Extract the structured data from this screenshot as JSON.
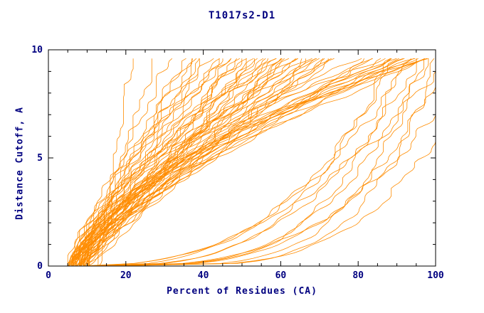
{
  "chart_data": {
    "type": "line",
    "title": "T1017s2-D1",
    "xlabel": "Percent of Residues (CA)",
    "ylabel": "Distance Cutoff, A",
    "xlim": [
      0,
      100
    ],
    "ylim": [
      0,
      10
    ],
    "x_major_ticks": [
      0,
      20,
      40,
      60,
      80,
      100
    ],
    "x_minor_step": 5,
    "y_major_ticks": [
      0,
      5,
      10
    ],
    "y_minor_step": 1,
    "grid": false,
    "legend": "none",
    "line_color": "#FF8C00",
    "axis_color": "#000000",
    "text_color": "#000080",
    "curve_model": "x(y) = x0 + (x1-x0)*(y/ymax)^p, monotone stair-stepped",
    "curves": [
      [
        13,
        21,
        1.15
      ],
      [
        12,
        27,
        1.1
      ],
      [
        6,
        32,
        1.1
      ],
      [
        7,
        35,
        1.0
      ],
      [
        5,
        38,
        1.2
      ],
      [
        8,
        40,
        0.95
      ],
      [
        6,
        42,
        1.15
      ],
      [
        9,
        44,
        1.05
      ],
      [
        7,
        46,
        1.2
      ],
      [
        5,
        48,
        1.0
      ],
      [
        8,
        50,
        1.1
      ],
      [
        10,
        52,
        0.9
      ],
      [
        6,
        54,
        1.25
      ],
      [
        7,
        56,
        1.05
      ],
      [
        9,
        58,
        1.15
      ],
      [
        5,
        60,
        1.0
      ],
      [
        8,
        62,
        1.2
      ],
      [
        6,
        64,
        1.1
      ],
      [
        10,
        66,
        0.95
      ],
      [
        7,
        68,
        1.15
      ],
      [
        9,
        70,
        1.05
      ],
      [
        6,
        72,
        1.25
      ],
      [
        8,
        74,
        1.1
      ],
      [
        5,
        45,
        1.3
      ],
      [
        7,
        52,
        1.35
      ],
      [
        9,
        48,
        0.85
      ],
      [
        6,
        57,
        1.3
      ],
      [
        8,
        66,
        1.35
      ],
      [
        10,
        60,
        1.2
      ],
      [
        5,
        36,
        0.9
      ],
      [
        7,
        41,
        1.25
      ],
      [
        9,
        55,
        1.3
      ],
      [
        6,
        49,
        0.95
      ],
      [
        8,
        59,
        1.25
      ],
      [
        10,
        71,
        1.3
      ],
      [
        5,
        63,
        1.15
      ],
      [
        7,
        67,
        1.4
      ],
      [
        9,
        73,
        1.2
      ],
      [
        6,
        39,
        1.05
      ],
      [
        8,
        47,
        1.3
      ],
      [
        10,
        53,
        1.0
      ],
      [
        5,
        58,
        1.35
      ],
      [
        7,
        62,
        0.9
      ],
      [
        9,
        65,
        1.25
      ],
      [
        6,
        69,
        1.35
      ],
      [
        8,
        72,
        1.05
      ],
      [
        10,
        75,
        1.4
      ],
      [
        6,
        80,
        1.4
      ],
      [
        8,
        83,
        1.5
      ],
      [
        7,
        86,
        1.3
      ],
      [
        9,
        88,
        1.6
      ],
      [
        5,
        90,
        1.45
      ],
      [
        8,
        92,
        1.7
      ],
      [
        6,
        94,
        1.5
      ],
      [
        10,
        96,
        1.8
      ],
      [
        7,
        98,
        1.6
      ],
      [
        9,
        100,
        1.9
      ],
      [
        6,
        85,
        1.2
      ],
      [
        8,
        95,
        1.35
      ],
      [
        7,
        91,
        2.0
      ],
      [
        9,
        97,
        1.5
      ],
      [
        5,
        99,
        1.7
      ],
      [
        8,
        87,
        1.25
      ],
      [
        10,
        93,
        1.55
      ],
      [
        6,
        100,
        1.4
      ],
      [
        9,
        88,
        0.3
      ],
      [
        11,
        92,
        0.25
      ],
      [
        10,
        96,
        0.35
      ],
      [
        12,
        100,
        0.2
      ],
      [
        8,
        94,
        0.4
      ],
      [
        13,
        98,
        0.3
      ],
      [
        10,
        100,
        0.28,
        8.5
      ],
      [
        14,
        100,
        0.35,
        7.0
      ],
      [
        12,
        97,
        0.22
      ],
      [
        9,
        100,
        0.45,
        9.0
      ],
      [
        15,
        100,
        0.25,
        6.0
      ],
      [
        11,
        90,
        0.38
      ]
    ]
  }
}
